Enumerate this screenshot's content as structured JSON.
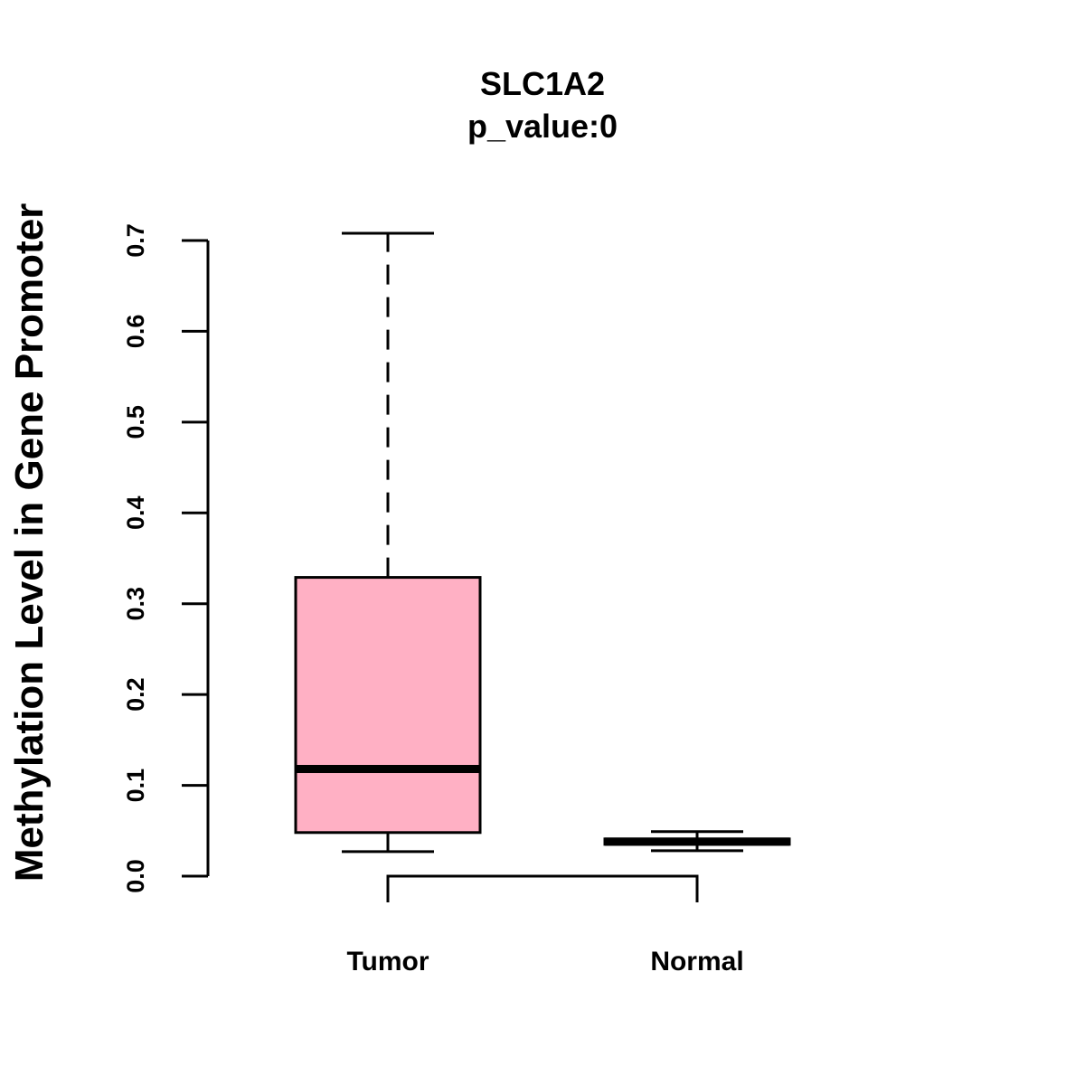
{
  "chart_data": {
    "type": "boxplot",
    "title": "SLC1A2",
    "subtitle": "p_value:0",
    "xlabel": "",
    "ylabel": "Methylation Level in Gene Promoter",
    "ylim": [
      0,
      0.7
    ],
    "yticks": [
      "0.0",
      "0.1",
      "0.2",
      "0.3",
      "0.4",
      "0.5",
      "0.6",
      "0.7"
    ],
    "categories": [
      "Tumor",
      "Normal"
    ],
    "boxes": [
      {
        "name": "Tumor",
        "min": 0.027,
        "q1": 0.048,
        "median": 0.118,
        "q3": 0.329,
        "max": 0.708,
        "color": "#ffb0c4"
      },
      {
        "name": "Normal",
        "min": 0.028,
        "q1": 0.035,
        "median": 0.038,
        "q3": 0.041,
        "max": 0.049,
        "color": "#ffb0c4"
      }
    ],
    "bracket": {
      "from": "Tumor",
      "to": "Normal"
    },
    "grid": false,
    "legend": "none"
  }
}
